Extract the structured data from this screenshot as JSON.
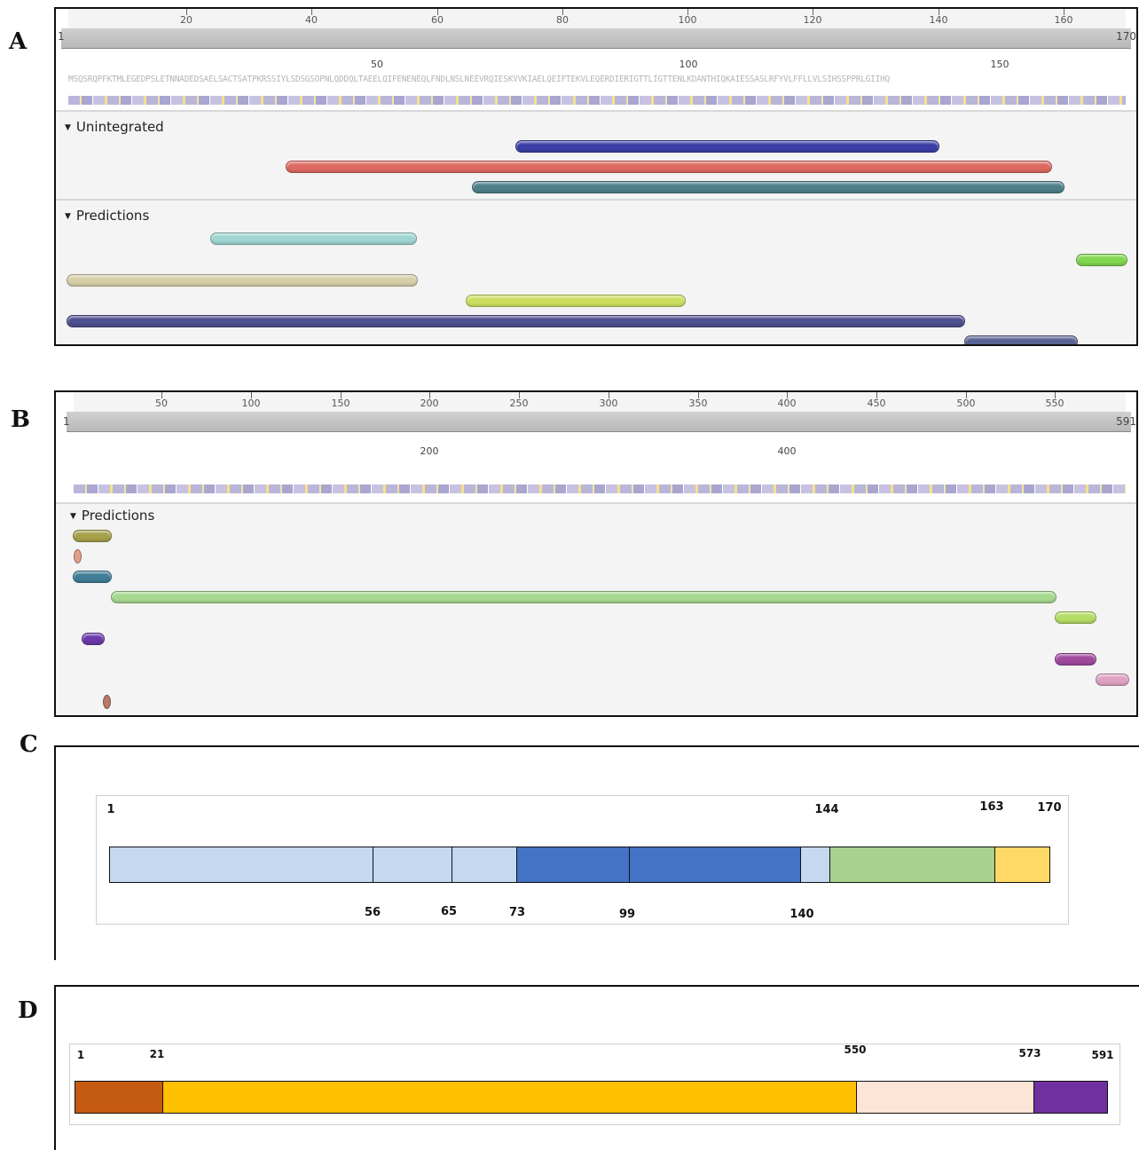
{
  "panels": {
    "a": {
      "letter": "A",
      "ruler": {
        "start": "1",
        "end": "170",
        "ticks": [
          "20",
          "40",
          "60",
          "80",
          "100",
          "120",
          "140",
          "160"
        ]
      },
      "sequence_axis": [
        "50",
        "100",
        "150"
      ],
      "sequence": "MSQSRQPFKTMLEGEDPSLETNNADEDSAELSACTSATPKRSSIYLSDSGSOPNLQDDQLTAEELQIFENENEQLFNDLNSLNEEVRQIESKVVKIAELQEIFTEKVLEQERDIERIGTTLIGTTENLKDANTHIQKAIESSASLRFYVLFFLLVLSIHSSPPRLGIIHQ",
      "sections": [
        "Unintegrated",
        "Predictions"
      ]
    },
    "b": {
      "letter": "B",
      "ruler": {
        "start": "1",
        "end": "591",
        "ticks": [
          "50",
          "100",
          "150",
          "200",
          "250",
          "300",
          "350",
          "400",
          "450",
          "500",
          "550"
        ]
      },
      "sequence_axis": [
        "200",
        "400"
      ],
      "sections": [
        "Predictions"
      ]
    },
    "c": {
      "letter": "C",
      "top_labels": [
        "1",
        "144",
        "163",
        "170"
      ],
      "bottom_labels": [
        "56",
        "65",
        "73",
        "99",
        "140"
      ]
    },
    "d": {
      "letter": "D",
      "top_labels": [
        "1",
        "21",
        "550",
        "573",
        "591"
      ]
    }
  },
  "colors": {
    "a_bars": [
      "#3b3ea6",
      "#dd6a62",
      "#4f7f8a",
      "#9fd6d2",
      "#d6cfa8",
      "#80d64f",
      "#cddf60",
      "#4e4f8f",
      "#5a6494"
    ],
    "b_bars": [
      "#a5a04a",
      "#e0a088",
      "#3f7e96",
      "#a6d88f",
      "#b4dd64",
      "#6a3aa8",
      "#a04a9e",
      "#e0a2c4",
      "#b87a6a"
    ],
    "c_segments": [
      "#c4d8f0",
      "#4472c4",
      "#a9d18e",
      "#ffd966"
    ],
    "d_segments": [
      "#c55a11",
      "#ffc000",
      "#fce4d6",
      "#7030a0"
    ]
  }
}
